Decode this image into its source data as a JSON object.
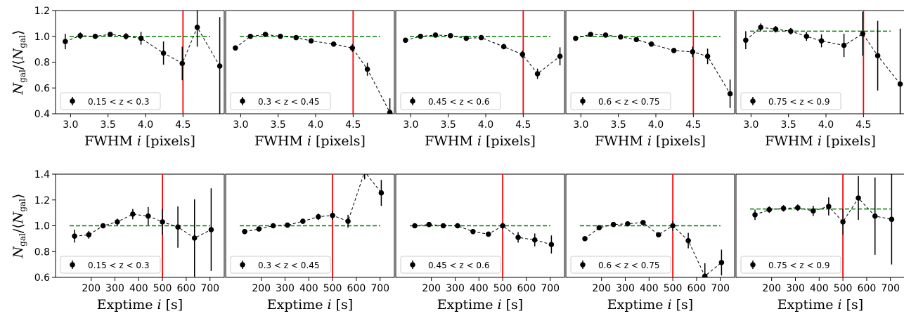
{
  "figure": {
    "rows": [
      {
        "xlabel_text": "FWHM",
        "xlabel_var": "i",
        "xlabel_unit": "[pixels]",
        "ylabel": "N_gal/<N_gal>",
        "ylim": [
          0.4,
          1.2
        ],
        "yticks": [
          "0.4",
          "0.6",
          "0.8",
          "1.0",
          "1.2"
        ],
        "ytick_values": [
          0.4,
          0.6,
          0.8,
          1.0,
          1.2
        ],
        "xlim": [
          2.8,
          5.05
        ],
        "xticks": [
          "3.0",
          "3.5",
          "4.0",
          "4.5"
        ],
        "xtick_values": [
          3.0,
          3.5,
          4.0,
          4.5
        ],
        "cut": 4.5
      },
      {
        "xlabel_text": "Exptime",
        "xlabel_var": "i",
        "xlabel_unit": "[s]",
        "ylabel": "N_gal/<N_gal>",
        "ylim": [
          0.6,
          1.4
        ],
        "yticks": [
          "0.6",
          "0.8",
          "1.0",
          "1.2",
          "1.4"
        ],
        "ytick_values": [
          0.6,
          0.8,
          1.0,
          1.2,
          1.4
        ],
        "xlim": [
          50,
          760
        ],
        "xticks": [
          "200",
          "300",
          "400",
          "500",
          "600",
          "700"
        ],
        "xtick_values": [
          200,
          300,
          400,
          500,
          600,
          700
        ],
        "cut": 500
      }
    ]
  },
  "colors": {
    "cut_line": "#ff0000",
    "mean_line": "#008000",
    "points": "#000000"
  },
  "chart_data": [
    {
      "type": "scatter",
      "row": 0,
      "col": 0,
      "legend": "0.15 < z < 0.3",
      "mean": 1.0,
      "x": [
        2.93,
        3.13,
        3.33,
        3.53,
        3.74,
        3.94,
        4.24,
        4.49,
        4.69,
        4.99
      ],
      "y": [
        0.96,
        1.005,
        1.0,
        1.015,
        1.0,
        0.985,
        0.87,
        0.79,
        1.07,
        0.77
      ],
      "err": [
        0.06,
        0.025,
        0.02,
        0.02,
        0.025,
        0.05,
        0.09,
        0.13,
        0.15,
        0.38
      ]
    },
    {
      "type": "scatter",
      "row": 0,
      "col": 1,
      "legend": "0.3 < z < 0.45",
      "mean": 1.0,
      "x": [
        2.93,
        3.13,
        3.33,
        3.53,
        3.74,
        3.94,
        4.24,
        4.49,
        4.69,
        4.99
      ],
      "y": [
        0.91,
        1.0,
        1.015,
        1.0,
        0.99,
        0.965,
        0.94,
        0.91,
        0.745,
        0.41
      ],
      "err": [
        0.02,
        0.015,
        0.015,
        0.015,
        0.015,
        0.015,
        0.02,
        0.03,
        0.05,
        0.11
      ]
    },
    {
      "type": "scatter",
      "row": 0,
      "col": 2,
      "legend": "0.45 < z < 0.6",
      "mean": 1.0,
      "x": [
        2.93,
        3.13,
        3.33,
        3.53,
        3.74,
        3.94,
        4.24,
        4.49,
        4.69,
        4.99
      ],
      "y": [
        0.97,
        1.0,
        1.01,
        1.005,
        0.985,
        0.99,
        0.92,
        0.86,
        0.71,
        0.845
      ],
      "err": [
        0.02,
        0.015,
        0.015,
        0.015,
        0.015,
        0.015,
        0.02,
        0.03,
        0.04,
        0.07
      ]
    },
    {
      "type": "scatter",
      "row": 0,
      "col": 3,
      "legend": "0.6 < z < 0.75",
      "mean": 1.0,
      "x": [
        2.93,
        3.13,
        3.33,
        3.53,
        3.74,
        3.94,
        4.24,
        4.49,
        4.69,
        4.99
      ],
      "y": [
        0.985,
        1.015,
        1.01,
        0.995,
        0.975,
        0.94,
        0.89,
        0.88,
        0.845,
        0.555
      ],
      "err": [
        0.015,
        0.015,
        0.015,
        0.015,
        0.015,
        0.015,
        0.02,
        0.04,
        0.06,
        0.11
      ]
    },
    {
      "type": "scatter",
      "row": 0,
      "col": 4,
      "legend": "0.75 < z < 0.9",
      "mean": 1.04,
      "x": [
        2.93,
        3.13,
        3.33,
        3.53,
        3.74,
        3.94,
        4.24,
        4.49,
        4.69,
        4.99
      ],
      "y": [
        0.97,
        1.07,
        1.055,
        1.04,
        1.0,
        0.965,
        0.93,
        1.02,
        0.85,
        0.63
      ],
      "err": [
        0.07,
        0.03,
        0.025,
        0.025,
        0.035,
        0.05,
        0.09,
        0.17,
        0.27,
        0.43
      ]
    },
    {
      "type": "scatter",
      "row": 1,
      "col": 0,
      "legend": "0.15 < z < 0.3",
      "mean": 1.0,
      "x": [
        130,
        190,
        250,
        310,
        375,
        440,
        500,
        565,
        635,
        705
      ],
      "y": [
        0.92,
        0.93,
        1.0,
        1.03,
        1.09,
        1.075,
        1.03,
        0.99,
        0.905,
        0.97
      ],
      "err": [
        0.05,
        0.03,
        0.02,
        0.025,
        0.04,
        0.07,
        0.1,
        0.16,
        0.3,
        0.32
      ]
    },
    {
      "type": "scatter",
      "row": 1,
      "col": 1,
      "legend": "0.3 < z < 0.45",
      "mean": 1.0,
      "x": [
        130,
        190,
        250,
        310,
        375,
        440,
        500,
        565,
        635,
        705
      ],
      "y": [
        0.955,
        0.975,
        1.0,
        1.005,
        1.035,
        1.07,
        1.08,
        1.035,
        1.42,
        1.255
      ],
      "err": [
        0.02,
        0.015,
        0.015,
        0.015,
        0.02,
        0.025,
        0.035,
        0.05,
        0.06,
        0.1
      ]
    },
    {
      "type": "scatter",
      "row": 1,
      "col": 2,
      "legend": "0.45 < z < 0.6",
      "mean": 1.0,
      "x": [
        130,
        190,
        250,
        310,
        375,
        440,
        500,
        565,
        635,
        705
      ],
      "y": [
        1.0,
        1.01,
        1.0,
        1.0,
        0.955,
        0.935,
        1.0,
        0.91,
        0.89,
        0.855
      ],
      "err": [
        0.015,
        0.015,
        0.015,
        0.015,
        0.015,
        0.02,
        0.025,
        0.04,
        0.05,
        0.07
      ]
    },
    {
      "type": "scatter",
      "row": 1,
      "col": 3,
      "legend": "0.6 < z < 0.75",
      "mean": 1.0,
      "x": [
        130,
        190,
        250,
        310,
        375,
        440,
        500,
        565,
        635,
        705
      ],
      "y": [
        0.9,
        0.985,
        1.01,
        1.015,
        1.025,
        0.93,
        1.0,
        0.885,
        0.61,
        0.715
      ],
      "err": [
        0.015,
        0.015,
        0.015,
        0.015,
        0.015,
        0.02,
        0.04,
        0.06,
        0.1,
        0.1
      ]
    },
    {
      "type": "scatter",
      "row": 1,
      "col": 4,
      "legend": "0.75 < z < 0.9",
      "mean": 1.13,
      "x": [
        130,
        190,
        250,
        310,
        375,
        440,
        500,
        565,
        635,
        705
      ],
      "y": [
        1.085,
        1.125,
        1.135,
        1.14,
        1.115,
        1.15,
        1.03,
        1.215,
        1.075,
        1.05
      ],
      "err": [
        0.04,
        0.025,
        0.025,
        0.025,
        0.04,
        0.07,
        0.1,
        0.17,
        0.3,
        0.35
      ]
    }
  ]
}
